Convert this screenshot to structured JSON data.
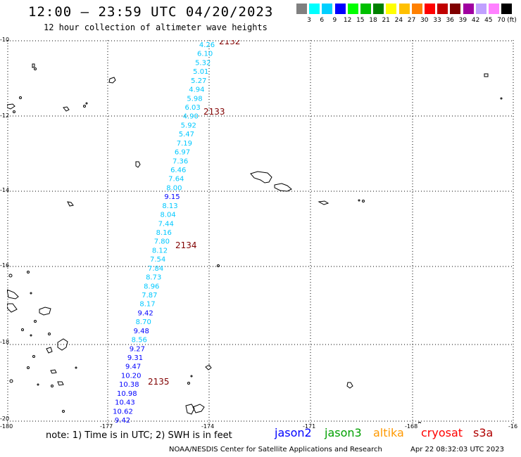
{
  "title": "12:00 – 23:59 UTC 04/20/2023",
  "subtitle": "12 hour collection of altimeter wave heights",
  "color_scale": {
    "colors": [
      "#808080",
      "#00ffff",
      "#00d0ff",
      "#0000ff",
      "#00ff00",
      "#00c000",
      "#008000",
      "#ffff00",
      "#ffc000",
      "#ff8000",
      "#ff0000",
      "#c00000",
      "#800000",
      "#a000a0",
      "#c0a0ff",
      "#ff80ff",
      "#000000"
    ],
    "labels": [
      "3",
      "6",
      "9",
      "12",
      "15",
      "18",
      "21",
      "24",
      "27",
      "30",
      "33",
      "36",
      "39",
      "42",
      "45",
      "70"
    ],
    "unit": "(ft)"
  },
  "lat_labels": [
    "-10",
    "-12",
    "-14",
    "-16",
    "-18",
    "-20"
  ],
  "lon_labels": [
    "-180",
    "-177",
    "-174",
    "-171",
    "-168",
    "-16"
  ],
  "time_labels": [
    "2132",
    "2133",
    "2134",
    "2135"
  ],
  "observations": [
    {
      "v": "4.26",
      "c": "#00c8ff"
    },
    {
      "v": "6.10",
      "c": "#00c8ff"
    },
    {
      "v": "5.32",
      "c": "#00c8ff"
    },
    {
      "v": "5.01",
      "c": "#00c8ff"
    },
    {
      "v": "5.27",
      "c": "#00c8ff"
    },
    {
      "v": "4.94",
      "c": "#00c8ff"
    },
    {
      "v": "5.98",
      "c": "#00c8ff"
    },
    {
      "v": "6.03",
      "c": "#00c8ff"
    },
    {
      "v": "4.90",
      "c": "#00c8ff"
    },
    {
      "v": "5.92",
      "c": "#00c8ff"
    },
    {
      "v": "5.47",
      "c": "#00c8ff"
    },
    {
      "v": "7.19",
      "c": "#00c8ff"
    },
    {
      "v": "6.97",
      "c": "#00c8ff"
    },
    {
      "v": "7.36",
      "c": "#00c8ff"
    },
    {
      "v": "6.46",
      "c": "#00c8ff"
    },
    {
      "v": "7.64",
      "c": "#00c8ff"
    },
    {
      "v": "8.00",
      "c": "#00c8ff"
    },
    {
      "v": "9.15",
      "c": "#0000ff"
    },
    {
      "v": "8.13",
      "c": "#00c8ff"
    },
    {
      "v": "8.04",
      "c": "#00c8ff"
    },
    {
      "v": "7.44",
      "c": "#00c8ff"
    },
    {
      "v": "8.16",
      "c": "#00c8ff"
    },
    {
      "v": "7.80",
      "c": "#00c8ff"
    },
    {
      "v": "8.12",
      "c": "#00c8ff"
    },
    {
      "v": "7.54",
      "c": "#00c8ff"
    },
    {
      "v": "7.84",
      "c": "#00c8ff"
    },
    {
      "v": "8.73",
      "c": "#00c8ff"
    },
    {
      "v": "8.96",
      "c": "#00c8ff"
    },
    {
      "v": "7.87",
      "c": "#00c8ff"
    },
    {
      "v": "8.17",
      "c": "#00c8ff"
    },
    {
      "v": "9.42",
      "c": "#0000ff"
    },
    {
      "v": "8.70",
      "c": "#00c8ff"
    },
    {
      "v": "9.48",
      "c": "#0000ff"
    },
    {
      "v": "8.56",
      "c": "#00c8ff"
    },
    {
      "v": "9.27",
      "c": "#0000ff"
    },
    {
      "v": "9.31",
      "c": "#0000ff"
    },
    {
      "v": "9.47",
      "c": "#0000ff"
    },
    {
      "v": "10.20",
      "c": "#0000ff"
    },
    {
      "v": "10.38",
      "c": "#0000ff"
    },
    {
      "v": "10.98",
      "c": "#0000ff"
    },
    {
      "v": "10.43",
      "c": "#0000ff"
    },
    {
      "v": "10.62",
      "c": "#0000ff"
    },
    {
      "v": "9.42",
      "c": "#0000ff"
    }
  ],
  "note": "note:  1) Time is in UTC;  2) SWH is in feet",
  "satellites": [
    {
      "name": "jason2",
      "color": "#0000ff"
    },
    {
      "name": "jason3",
      "color": "#00a000"
    },
    {
      "name": "altika",
      "color": "#ff9900"
    },
    {
      "name": "cryosat",
      "color": "#ff0000"
    },
    {
      "name": "s3a",
      "color": "#b00000"
    }
  ],
  "credit": "NOAA/NESDIS Center for Satellite Applications and Research",
  "generated": "Apr 22 08:32:03 UTC 2023"
}
